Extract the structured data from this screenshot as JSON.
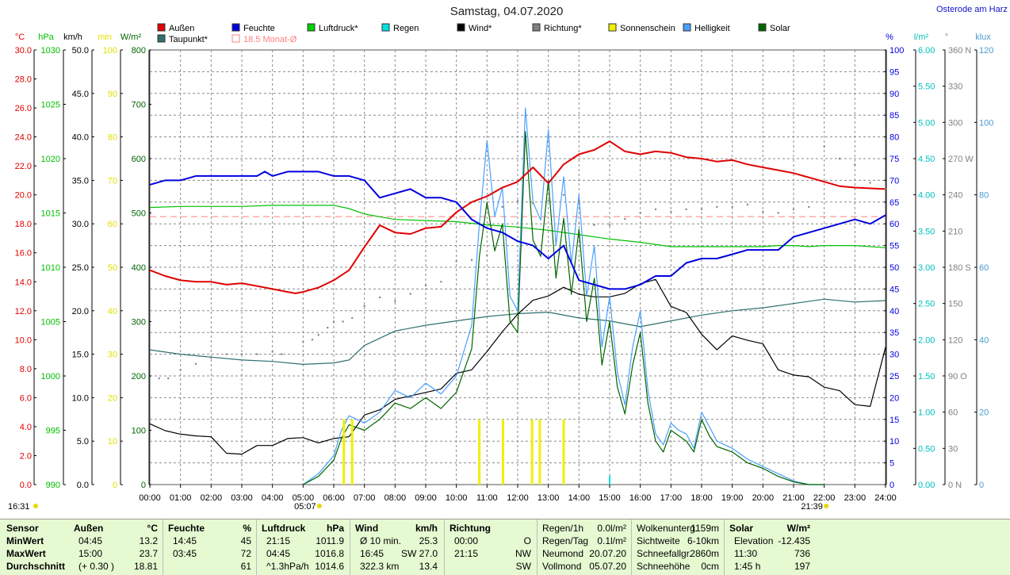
{
  "header": {
    "title": "Samstag, 04.07.2020",
    "location": "Osterode am Harz"
  },
  "legend": [
    {
      "label": "Außen",
      "color": "#e00000"
    },
    {
      "label": "Feuchte",
      "color": "#0000e0"
    },
    {
      "label": "Luftdruck*",
      "color": "#00d000"
    },
    {
      "label": "Regen",
      "color": "#00e0e0"
    },
    {
      "label": "Wind*",
      "color": "#000000"
    },
    {
      "label": "Richtung*",
      "color": "#808080"
    },
    {
      "label": "Sonnenschein",
      "color": "#f0f000"
    },
    {
      "label": "Helligkeit",
      "color": "#4aa0ff"
    },
    {
      "label": "Solar",
      "color": "#006400"
    },
    {
      "label": "Taupunkt*",
      "color": "#2f6f6f"
    },
    {
      "label": "18.5 Monat-Ø",
      "color": "#ff8080"
    }
  ],
  "left_axes": [
    {
      "unit": "°C",
      "color": "#e00000",
      "ticks": [
        "0.0",
        "2.0",
        "4.0",
        "6.0",
        "8.0",
        "10.0",
        "12.0",
        "14.0",
        "16.0",
        "18.0",
        "20.0",
        "22.0",
        "24.0",
        "26.0",
        "28.0",
        "30.0"
      ]
    },
    {
      "unit": "hPa",
      "color": "#00c000",
      "ticks": [
        "990",
        "995",
        "1000",
        "1005",
        "1010",
        "1015",
        "1020",
        "1025",
        "1030"
      ]
    },
    {
      "unit": "km/h",
      "color": "#000000",
      "ticks": [
        "0.0",
        "5.0",
        "10.0",
        "15.0",
        "20.0",
        "25.0",
        "30.0",
        "35.0",
        "40.0",
        "45.0",
        "50.0"
      ]
    },
    {
      "unit": "min",
      "color": "#e0e000",
      "ticks": [
        "0",
        "10",
        "20",
        "30",
        "40",
        "50",
        "60",
        "70",
        "80",
        "90",
        "100"
      ]
    },
    {
      "unit": "W/m²",
      "color": "#006400",
      "ticks": [
        "0",
        "100",
        "200",
        "300",
        "400",
        "500",
        "600",
        "700",
        "800"
      ]
    }
  ],
  "right_axes": [
    {
      "unit": "%",
      "color": "#0000e0",
      "ticks": [
        "0",
        "5",
        "10",
        "15",
        "20",
        "25",
        "30",
        "35",
        "40",
        "45",
        "50",
        "55",
        "60",
        "65",
        "70",
        "75",
        "80",
        "85",
        "90",
        "95",
        "100"
      ]
    },
    {
      "unit": "l/m²",
      "color": "#00c0c0",
      "ticks": [
        "0.00",
        "0.50",
        "1.00",
        "1.50",
        "2.00",
        "2.50",
        "3.00",
        "3.50",
        "4.00",
        "4.50",
        "5.00",
        "5.50",
        "6.00"
      ]
    },
    {
      "unit": "°",
      "color": "#808080",
      "ticks": [
        "0 N",
        "30",
        "60",
        "90 O",
        "120",
        "150",
        "180 S",
        "210",
        "240",
        "270 W",
        "300",
        "330",
        "360 N"
      ]
    },
    {
      "unit": "klux",
      "color": "#4a9ad0",
      "ticks": [
        "0",
        "20",
        "40",
        "60",
        "80",
        "100",
        "120"
      ]
    }
  ],
  "x_ticks": [
    "00:00",
    "01:00",
    "02:00",
    "03:00",
    "04:00",
    "05:00",
    "06:00",
    "07:00",
    "08:00",
    "09:00",
    "10:00",
    "11:00",
    "12:00",
    "13:00",
    "14:00",
    "15:00",
    "16:00",
    "17:00",
    "18:00",
    "19:00",
    "20:00",
    "21:00",
    "22:00",
    "23:00",
    "24:00"
  ],
  "sun_markers": {
    "sunrise": "05:07",
    "sunset": "21:39",
    "daylength": "16:31"
  },
  "chart_data": {
    "type": "line",
    "x_unit": "hours",
    "series": [
      {
        "name": "Außen",
        "unit": "°C",
        "ylim": [
          0,
          30
        ],
        "color": "#e00000",
        "x": [
          0,
          0.5,
          1,
          1.5,
          2,
          2.5,
          3,
          3.5,
          4,
          4.5,
          4.75,
          5,
          5.5,
          6,
          6.5,
          7,
          7.3,
          7.5,
          8,
          8.5,
          9,
          9.5,
          10,
          10.5,
          11,
          11.5,
          12,
          12.5,
          13,
          13.5,
          14,
          14.5,
          15,
          15.5,
          16,
          16.5,
          17,
          17.5,
          18,
          18.5,
          19,
          19.5,
          20,
          20.5,
          21,
          21.5,
          22,
          22.5,
          23,
          24
        ],
        "y": [
          14.8,
          14.4,
          14.1,
          14.0,
          14.0,
          13.8,
          13.9,
          13.7,
          13.5,
          13.3,
          13.2,
          13.3,
          13.6,
          14.1,
          14.8,
          16.4,
          17.3,
          17.9,
          17.4,
          17.3,
          17.7,
          17.8,
          18.8,
          19.5,
          19.9,
          20.5,
          20.9,
          21.9,
          20.8,
          22.1,
          22.8,
          23.1,
          23.7,
          23.0,
          22.8,
          23.0,
          22.9,
          22.6,
          22.5,
          22.3,
          22.4,
          22.1,
          21.9,
          21.7,
          21.5,
          21.2,
          20.9,
          20.6,
          20.5,
          20.4
        ]
      },
      {
        "name": "Feuchte",
        "unit": "%",
        "ylim": [
          0,
          100
        ],
        "color": "#0000e0",
        "x": [
          0,
          0.5,
          1,
          1.5,
          2,
          2.5,
          3,
          3.5,
          3.75,
          4,
          4.5,
          5,
          5.5,
          6,
          6.5,
          7,
          7.5,
          8,
          8.5,
          9,
          9.5,
          10,
          10.5,
          11,
          11.5,
          12,
          12.5,
          13,
          13.5,
          14,
          14.5,
          15,
          15.5,
          16,
          16.5,
          17,
          17.5,
          18,
          18.5,
          19,
          19.5,
          20,
          20.5,
          21,
          21.5,
          22,
          22.5,
          23,
          23.5,
          24
        ],
        "y": [
          69,
          70,
          70,
          71,
          71,
          71,
          71,
          71,
          72,
          71,
          72,
          72,
          72,
          71,
          71,
          70,
          66,
          67,
          68,
          66,
          66,
          65,
          61,
          59,
          58,
          56,
          55,
          52,
          55,
          47,
          46,
          45,
          45,
          46,
          48,
          48,
          51,
          52,
          52,
          53,
          54,
          54,
          54,
          57,
          58,
          59,
          60,
          61,
          60,
          62
        ]
      },
      {
        "name": "Luftdruck*",
        "unit": "hPa",
        "ylim": [
          990,
          1030
        ],
        "color": "#00c000",
        "x": [
          0,
          1,
          2,
          3,
          4,
          5,
          6,
          6.5,
          7,
          8,
          9,
          10,
          11,
          12,
          13,
          14,
          15,
          16,
          17,
          18,
          19,
          20,
          20.5,
          21,
          21.5,
          22,
          23,
          24
        ],
        "y": [
          1015.5,
          1015.6,
          1015.6,
          1015.6,
          1015.7,
          1015.7,
          1015.7,
          1015.4,
          1014.9,
          1014.4,
          1014.3,
          1014.2,
          1013.9,
          1013.7,
          1013.4,
          1013.0,
          1012.6,
          1012.3,
          1011.9,
          1011.9,
          1011.9,
          1011.9,
          1012.0,
          1012.0,
          1011.9,
          1012.0,
          1012.0,
          1011.8
        ]
      },
      {
        "name": "Taupunkt*",
        "unit": "°C",
        "ylim": [
          0,
          30
        ],
        "color": "#2f6f6f",
        "x": [
          0,
          1,
          2,
          3,
          4,
          5,
          6,
          6.5,
          7,
          8,
          9,
          10,
          11,
          12,
          13,
          14,
          15,
          16,
          17,
          18,
          19,
          20,
          21,
          22,
          23,
          24
        ],
        "y": [
          9.3,
          9.0,
          8.8,
          8.6,
          8.5,
          8.3,
          8.4,
          8.6,
          9.6,
          10.6,
          11.0,
          11.3,
          11.6,
          11.8,
          11.9,
          11.5,
          11.3,
          10.9,
          11.3,
          11.7,
          12.0,
          12.2,
          12.5,
          12.8,
          12.6,
          12.7
        ]
      },
      {
        "name": "Wind*",
        "unit": "km/h",
        "ylim": [
          0,
          50
        ],
        "color": "#000000",
        "x": [
          0,
          0.5,
          1,
          1.5,
          2,
          2.5,
          3,
          3.5,
          4,
          4.5,
          5,
          5.5,
          6,
          6.5,
          7,
          7.5,
          8,
          8.5,
          9,
          9.5,
          10,
          10.5,
          11,
          11.5,
          12,
          12.5,
          13,
          13.5,
          14,
          14.5,
          15,
          15.5,
          16,
          16.5,
          17,
          17.5,
          18,
          18.5,
          19,
          19.5,
          20,
          20.5,
          21,
          21.5,
          22,
          22.5,
          23,
          23.5,
          24
        ],
        "y": [
          7.0,
          6.2,
          5.8,
          5.6,
          5.5,
          3.6,
          3.5,
          4.5,
          4.5,
          5.3,
          5.4,
          4.8,
          5.3,
          5.5,
          8.0,
          8.6,
          9.8,
          10.2,
          10.6,
          11.0,
          12.8,
          13.2,
          15.3,
          17.6,
          19.6,
          21.2,
          21.7,
          22.7,
          21.9,
          21.6,
          21.6,
          22.0,
          23.1,
          23.6,
          20.5,
          19.8,
          17.3,
          15.5,
          17.1,
          16.6,
          16.2,
          13.2,
          12.6,
          12.4,
          11.2,
          10.8,
          9.2,
          9.0,
          15.8
        ]
      },
      {
        "name": "Solar",
        "unit": "W/m²",
        "ylim": [
          0,
          800
        ],
        "color": "#006400",
        "x": [
          5.0,
          5.5,
          6.0,
          6.25,
          6.5,
          7.0,
          7.5,
          8.0,
          8.5,
          9.0,
          9.5,
          10.0,
          10.5,
          10.75,
          11.0,
          11.25,
          11.5,
          11.75,
          12.0,
          12.25,
          12.5,
          12.75,
          13.0,
          13.25,
          13.5,
          13.75,
          14.0,
          14.25,
          14.5,
          14.75,
          15.0,
          15.25,
          15.5,
          15.75,
          16.0,
          16.25,
          16.5,
          16.75,
          17.0,
          17.25,
          17.5,
          17.75,
          18.0,
          18.25,
          18.5,
          19.0,
          19.5,
          20.0,
          20.5,
          21.0,
          21.5,
          22.0
        ],
        "y": [
          0,
          15,
          45,
          85,
          110,
          100,
          120,
          150,
          140,
          160,
          140,
          170,
          250,
          420,
          520,
          430,
          480,
          300,
          280,
          650,
          450,
          420,
          560,
          380,
          490,
          350,
          470,
          300,
          380,
          220,
          300,
          180,
          130,
          220,
          280,
          150,
          80,
          60,
          100,
          90,
          80,
          60,
          120,
          90,
          70,
          60,
          40,
          30,
          15,
          5,
          0,
          0
        ]
      },
      {
        "name": "Helligkeit",
        "unit": "klux",
        "ylim": [
          0,
          120
        ],
        "color": "#4aa0ff",
        "x": [
          5.0,
          5.5,
          6.0,
          6.25,
          6.5,
          7.0,
          7.5,
          8.0,
          8.5,
          9.0,
          9.5,
          10.0,
          10.5,
          10.75,
          11.0,
          11.25,
          11.5,
          11.75,
          12.0,
          12.25,
          12.5,
          12.75,
          13.0,
          13.25,
          13.5,
          13.75,
          14.0,
          14.25,
          14.5,
          14.75,
          15.0,
          15.25,
          15.5,
          15.75,
          16.0,
          16.25,
          16.5,
          16.75,
          17.0,
          17.25,
          17.5,
          17.75,
          18.0,
          18.25,
          18.5,
          19.0,
          19.5,
          20.0,
          20.5,
          21.0,
          21.5,
          22.0
        ],
        "y": [
          0,
          3,
          8,
          15,
          19,
          17,
          20,
          26,
          24,
          28,
          25,
          30,
          44,
          72,
          95,
          74,
          82,
          52,
          48,
          104,
          78,
          73,
          98,
          66,
          85,
          61,
          80,
          52,
          66,
          38,
          52,
          31,
          22,
          38,
          48,
          26,
          14,
          11,
          17,
          15,
          14,
          10,
          20,
          16,
          12,
          10,
          7,
          5,
          3,
          1,
          0,
          0
        ]
      },
      {
        "name": "Sonnenschein",
        "unit": "min",
        "ylim": [
          0,
          100
        ],
        "color": "#f0f000",
        "x": [
          6.33,
          6.6,
          10.75,
          11.52,
          12.47,
          12.72,
          13.5
        ],
        "y": [
          15,
          15,
          15,
          15,
          15,
          15,
          15
        ]
      },
      {
        "name": "Regen",
        "unit": "l/m²",
        "ylim": [
          0,
          6
        ],
        "color": "#00e0e0",
        "x": [
          15.0
        ],
        "y": [
          0.12
        ]
      },
      {
        "name": "Richtung*",
        "unit": "°",
        "ylim": [
          0,
          360
        ],
        "color": "#808080",
        "x": [
          0.3,
          0.6,
          1.0,
          1.5,
          2.0,
          2.5,
          3.0,
          3.5,
          4.0,
          4.3,
          5.0,
          5.3,
          5.5,
          5.8,
          6.0,
          6.3,
          6.6,
          7.0,
          7.5,
          8.0,
          8.5,
          9.0,
          9.5,
          10.0,
          10.5,
          11.0,
          11.5,
          12.0,
          12.5,
          13.0,
          13.5,
          14.0,
          14.5,
          15.0,
          15.5,
          16.0,
          16.5,
          17.0,
          17.5,
          18.0,
          18.5,
          19.0,
          19.5,
          20.0,
          20.5,
          21.0,
          21.5,
          22.0,
          22.5,
          23.0,
          23.5,
          24.0
        ],
        "y": [
          88,
          88,
          95,
          100,
          105,
          108,
          108,
          108,
          110,
          108,
          118,
          120,
          124,
          130,
          135,
          135,
          138,
          148,
          155,
          152,
          158,
          165,
          168,
          185,
          186,
          190,
          230,
          235,
          233,
          235,
          240,
          235,
          215,
          215,
          220,
          225,
          228,
          226,
          228,
          228,
          230,
          230,
          232,
          226,
          225,
          228,
          230,
          280,
          270,
          265,
          250,
          245
        ]
      }
    ],
    "monthly_avg_temp": 18.5
  },
  "stats": {
    "cols": [
      {
        "h": "Sensor",
        "r": [
          "MinWert",
          "MaxWert",
          "Durchschnitt"
        ]
      },
      {
        "h": "Außen",
        "u": "°C",
        "r": [
          [
            "04:45",
            "13.2"
          ],
          [
            "15:00",
            "23.7"
          ],
          [
            "(+ 0.30 )",
            "18.81"
          ]
        ]
      },
      {
        "h": "Feuchte",
        "u": "%",
        "r": [
          [
            "14:45",
            "45"
          ],
          [
            "03:45",
            "72"
          ],
          [
            "",
            "61"
          ]
        ]
      },
      {
        "h": "Luftdruck",
        "u": "hPa",
        "r": [
          [
            "21:15",
            "1011.9"
          ],
          [
            "04:45",
            "1016.8"
          ],
          [
            "^1.3hPa/h",
            "1014.6"
          ]
        ]
      },
      {
        "h": "Wind",
        "u": "km/h",
        "r": [
          [
            "Ø 10 min.",
            "25.3"
          ],
          [
            "16:45",
            "SW 27.0"
          ],
          [
            "322.3 km",
            "13.4"
          ]
        ]
      },
      {
        "h": "Richtung",
        "u": "",
        "r": [
          [
            "00:00",
            "O"
          ],
          [
            "21:15",
            "NW"
          ],
          [
            "",
            "SW"
          ]
        ]
      }
    ],
    "extra1": [
      [
        "Regen/1h",
        "0.0l/m²"
      ],
      [
        "Regen/Tag",
        "0.1l/m²"
      ],
      [
        "Neumond",
        "20.07.20"
      ],
      [
        "Vollmond",
        "05.07.20"
      ]
    ],
    "extra2": [
      [
        "Wolkenunterg.",
        "1159m"
      ],
      [
        "Sichtweite",
        "6-10km"
      ],
      [
        "Schneefallgr.",
        "2860m"
      ],
      [
        "Schneehöhe",
        "0cm"
      ]
    ],
    "solar": {
      "h": "Solar",
      "u": "W/m²",
      "r": [
        [
          "Elevation",
          "-12.435"
        ],
        [
          "11:30",
          "736"
        ],
        [
          "1:45 h",
          "197"
        ]
      ]
    }
  }
}
